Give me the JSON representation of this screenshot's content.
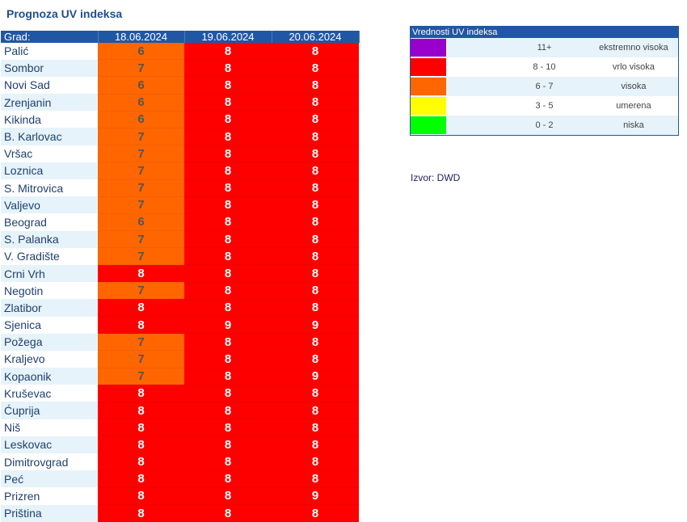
{
  "title": "Prognoza UV indeksa",
  "table": {
    "headers": [
      "Grad:",
      "18.06.2024",
      "19.06.2024",
      "20.06.2024"
    ],
    "rows": [
      {
        "city": "Palić",
        "values": [
          6,
          8,
          8
        ]
      },
      {
        "city": "Sombor",
        "values": [
          7,
          8,
          8
        ]
      },
      {
        "city": "Novi Sad",
        "values": [
          6,
          8,
          8
        ]
      },
      {
        "city": "Zrenjanin",
        "values": [
          6,
          8,
          8
        ]
      },
      {
        "city": "Kikinda",
        "values": [
          6,
          8,
          8
        ]
      },
      {
        "city": "B. Karlovac",
        "values": [
          7,
          8,
          8
        ]
      },
      {
        "city": "Vršac",
        "values": [
          7,
          8,
          8
        ]
      },
      {
        "city": "Loznica",
        "values": [
          7,
          8,
          8
        ]
      },
      {
        "city": "S. Mitrovica",
        "values": [
          7,
          8,
          8
        ]
      },
      {
        "city": "Valjevo",
        "values": [
          7,
          8,
          8
        ]
      },
      {
        "city": "Beograd",
        "values": [
          6,
          8,
          8
        ]
      },
      {
        "city": "S. Palanka",
        "values": [
          7,
          8,
          8
        ]
      },
      {
        "city": "V. Gradište",
        "values": [
          7,
          8,
          8
        ]
      },
      {
        "city": "Crni Vrh",
        "values": [
          8,
          8,
          8
        ]
      },
      {
        "city": "Negotin",
        "values": [
          7,
          8,
          8
        ]
      },
      {
        "city": "Zlatibor",
        "values": [
          8,
          8,
          8
        ]
      },
      {
        "city": "Sjenica",
        "values": [
          8,
          9,
          9
        ]
      },
      {
        "city": "Požega",
        "values": [
          7,
          8,
          8
        ]
      },
      {
        "city": "Kraljevo",
        "values": [
          7,
          8,
          8
        ]
      },
      {
        "city": "Kopaonik",
        "values": [
          7,
          8,
          9
        ]
      },
      {
        "city": "Kruševac",
        "values": [
          8,
          8,
          8
        ]
      },
      {
        "city": "Ćuprija",
        "values": [
          8,
          8,
          8
        ]
      },
      {
        "city": "Niš",
        "values": [
          8,
          8,
          8
        ]
      },
      {
        "city": "Leskovac",
        "values": [
          8,
          8,
          8
        ]
      },
      {
        "city": "Dimitrovgrad",
        "values": [
          8,
          8,
          8
        ]
      },
      {
        "city": "Peć",
        "values": [
          8,
          8,
          8
        ]
      },
      {
        "city": "Prizren",
        "values": [
          8,
          8,
          9
        ]
      },
      {
        "city": "Priština",
        "values": [
          8,
          8,
          8
        ]
      }
    ]
  },
  "legend": {
    "title": "Vrednosti UV indeksa",
    "items": [
      {
        "range": "11+",
        "label": "ekstremno visoka",
        "color": "#9900cc"
      },
      {
        "range": "8 - 10",
        "label": "vrlo visoka",
        "color": "#ff0000"
      },
      {
        "range": "6 - 7",
        "label": "visoka",
        "color": "#ff6600"
      },
      {
        "range": "3 - 5",
        "label": "umerena",
        "color": "#ffff00"
      },
      {
        "range": "0 - 2",
        "label": "niska",
        "color": "#00ff00"
      }
    ]
  },
  "source": "Izvor: DWD"
}
